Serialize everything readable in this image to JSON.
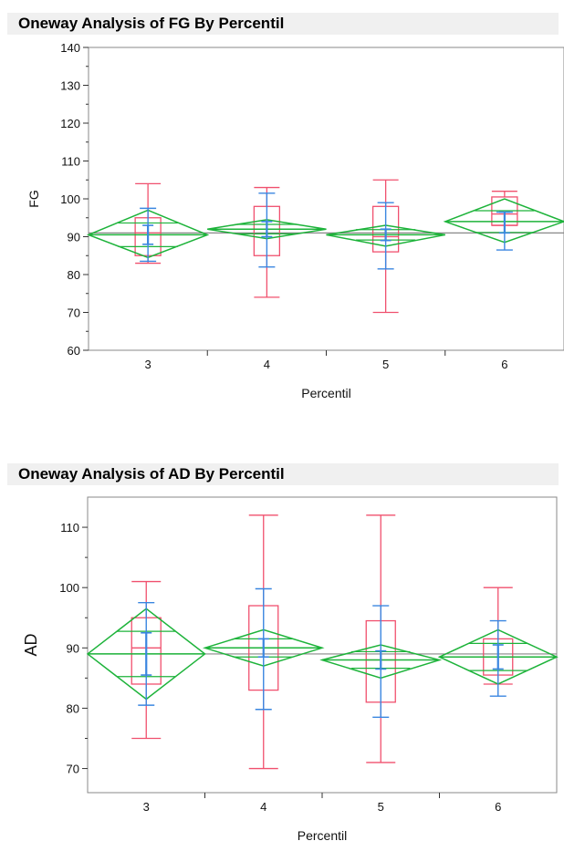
{
  "panels": [
    {
      "title": "Oneway Analysis of FG By Percentil"
    },
    {
      "title": "Oneway Analysis of AD By Percentil"
    }
  ],
  "colors": {
    "box": "#f0506e",
    "diamond": "#1db33a",
    "ci": "#3a86e0",
    "mean_line": "#888888",
    "frame": "#888888"
  },
  "chart_data": [
    {
      "type": "box",
      "title": "Oneway Analysis of FG By Percentil",
      "xlabel": "Percentil",
      "ylabel": "FG",
      "ylim": [
        60,
        140
      ],
      "yticks": [
        60,
        70,
        80,
        90,
        100,
        110,
        120,
        130,
        140
      ],
      "categories": [
        "3",
        "4",
        "5",
        "6"
      ],
      "grand_mean": 91,
      "groups": [
        {
          "category": "3",
          "min": 83,
          "q1": 85,
          "median": 91,
          "q3": 95,
          "max": 104,
          "mean": 90.5,
          "diamond_low": 84.5,
          "diamond_high": 97,
          "ci_low": 88,
          "ci_high": 93,
          "err_low": 83.5,
          "err_high": 97.5
        },
        {
          "category": "4",
          "min": 74,
          "q1": 85,
          "median": 92,
          "q3": 98,
          "max": 103,
          "mean": 92,
          "diamond_low": 89.5,
          "diamond_high": 94.5,
          "ci_low": 90,
          "ci_high": 94,
          "err_low": 82,
          "err_high": 101.5
        },
        {
          "category": "5",
          "min": 70,
          "q1": 86,
          "median": 90,
          "q3": 98,
          "max": 105,
          "mean": 90.5,
          "diamond_low": 87.5,
          "diamond_high": 93,
          "ci_low": 89,
          "ci_high": 92,
          "err_low": 81.5,
          "err_high": 99
        },
        {
          "category": "6",
          "min": 93,
          "q1": 93,
          "median": 96,
          "q3": 100.5,
          "max": 102,
          "mean": 94,
          "diamond_low": 88.5,
          "diamond_high": 100,
          "ci_low": 91,
          "ci_high": 96.5,
          "err_low": 86.5,
          "err_high": 96.5
        }
      ]
    },
    {
      "type": "box",
      "title": "Oneway Analysis of AD By Percentil",
      "xlabel": "Percentil",
      "ylabel": "AD",
      "ylim": [
        66,
        115
      ],
      "yticks": [
        70,
        80,
        90,
        100,
        110
      ],
      "categories": [
        "3",
        "4",
        "5",
        "6"
      ],
      "grand_mean": 89,
      "groups": [
        {
          "category": "3",
          "min": 75,
          "q1": 84,
          "median": 90,
          "q3": 95,
          "max": 101,
          "mean": 89,
          "diamond_low": 81.5,
          "diamond_high": 96.5,
          "ci_low": 85.5,
          "ci_high": 92.5,
          "err_low": 80.5,
          "err_high": 97.5
        },
        {
          "category": "4",
          "min": 70,
          "q1": 83,
          "median": 90,
          "q3": 97,
          "max": 112,
          "mean": 90,
          "diamond_low": 87,
          "diamond_high": 93,
          "ci_low": 88.5,
          "ci_high": 91.5,
          "err_low": 79.8,
          "err_high": 99.8
        },
        {
          "category": "5",
          "min": 71,
          "q1": 81,
          "median": 88,
          "q3": 94.5,
          "max": 112,
          "mean": 88,
          "diamond_low": 85,
          "diamond_high": 90.5,
          "ci_low": 86.5,
          "ci_high": 89.5,
          "err_low": 78.5,
          "err_high": 97
        },
        {
          "category": "6",
          "min": 84,
          "q1": 85.5,
          "median": 88.5,
          "q3": 91.5,
          "max": 100,
          "mean": 88.5,
          "diamond_low": 84,
          "diamond_high": 93,
          "ci_low": 86.5,
          "ci_high": 90.5,
          "err_low": 82,
          "err_high": 94.5
        }
      ]
    }
  ]
}
